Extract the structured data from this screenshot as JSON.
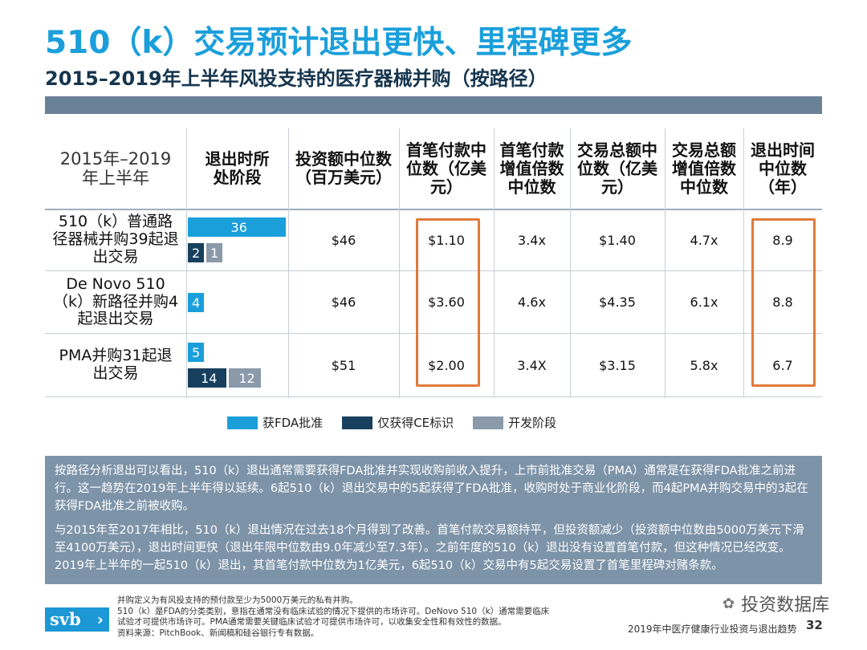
{
  "title": "510（k）交易预计退出更快、里程碑更多",
  "subtitle": "2015–2019年上半年风投支持的医疗器械并购（按路径）",
  "table": {
    "header_first": "2015年–2019年上半年",
    "headers": [
      "退出时所处阶段",
      "投资额中位数（百万美元）",
      "首笔付款中位数（亿美元）",
      "首笔付款增值倍数中位数",
      "交易总额中位数（亿美元）",
      "交易总额增值倍数中位数",
      "退出时间中位数（年）"
    ],
    "rows": [
      {
        "label": "510（k）普通路径器械并购39起退出交易",
        "investment": "$46",
        "upfront": "$1.10",
        "upfront_multiple": "3.4x",
        "total": "$1.40",
        "total_multiple": "4.7x",
        "time_to_exit": "8.9"
      },
      {
        "label": "De Novo 510（k）新路径并购4起退出交易",
        "investment": "$46",
        "upfront": "$3.60",
        "upfront_multiple": "4.6x",
        "total": "$4.35",
        "total_multiple": "6.1x",
        "time_to_exit": "8.8"
      },
      {
        "label": "PMA并购31起退出交易",
        "investment": "$51",
        "upfront": "$2.00",
        "upfront_multiple": "3.4X",
        "total": "$3.15",
        "total_multiple": "5.8x",
        "time_to_exit": "6.7"
      }
    ]
  },
  "chart_data": {
    "type": "bar",
    "orientation": "horizontal",
    "categories": [
      "510（k）普通路径器械并购",
      "De Novo 510（k）新路径并购",
      "PMA并购"
    ],
    "series": [
      {
        "name": "获FDA批准",
        "color": "#1a9fdb",
        "values": [
          36,
          4,
          5
        ]
      },
      {
        "name": "仅获得CE标识",
        "color": "#17405e",
        "values": [
          2,
          null,
          14
        ]
      },
      {
        "name": "开发阶段",
        "color": "#8a9aaa",
        "values": [
          1,
          null,
          12
        ]
      }
    ],
    "layout": "series 1 on its own line; series 2 and 3 share the second line",
    "legend": "bottom"
  },
  "legend": {
    "items": [
      {
        "label": "获FDA批准",
        "color": "#1a9fdb"
      },
      {
        "label": "仅获得CE标识",
        "color": "#17405e"
      },
      {
        "label": "开发阶段",
        "color": "#8a9aaa"
      }
    ]
  },
  "description": [
    "按路径分析退出可以看出，510（k）退出通常需要获得FDA批准并实现收购前收入提升，上市前批准交易（PMA）通常是在获得FDA批准之前进行。这一趋势在2019年上半年得以延续。6起510（k）退出交易中的5起获得了FDA批准，收购时处于商业化阶段，而4起PMA并购交易中的3起在获得FDA批准之前被收购。",
    "与2015年至2017年相比，510（k）退出情况在过去18个月得到了改善。首笔付款交易额持平，但投资额减少（投资额中位数由5000万美元下滑至4100万美元），退出时间更快（退出年限中位数由9.0年减少至7.3年）。之前年度的510（k）退出没有设置首笔付款，但这种情况已经改变。2019年上半年的一起510（k）退出，其首笔付款中位数为1亿美元，6起510（k）交易中有5起交易设置了首笔里程碑对赌条款。"
  ],
  "notes": [
    "并购定义为有风投支持的预付款至少为5000万美元的私有并购。",
    "510（k）是FDA的分类类别，意指在通常没有临床试验的情况下提供的市场许可。DeNovo 510（k）通常需要临床",
    "试验才可提供市场许可。PMA通常需要关键临床试验才可提供市场许可，以收集安全性和有效性的数据。",
    "资料来源：PitchBook、新闻稿和硅谷银行专有数据。"
  ],
  "logo": {
    "text": "svb",
    "chevron": "›"
  },
  "footer": "2019年中医疗健康行业投资与退出趋势",
  "page_number": "32",
  "watermark": "投资数据库",
  "colors": {
    "title": "#1a9fdb",
    "subtitle": "#16354e",
    "highlight": "#e07b39",
    "panel": "#7d93a8"
  }
}
